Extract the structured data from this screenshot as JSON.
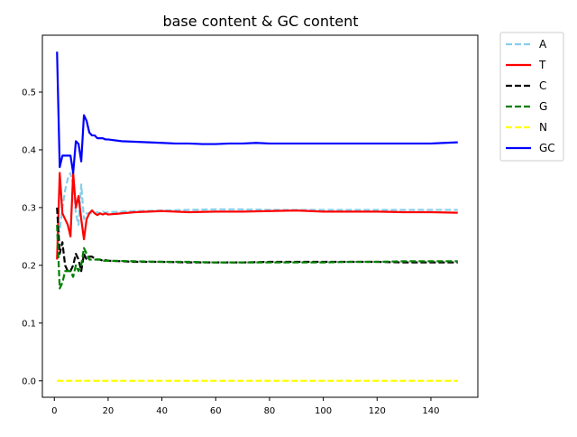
{
  "chart_data": {
    "type": "line",
    "title": "base content & GC content",
    "xlabel": "",
    "ylabel": "",
    "xlim": [
      -4.45,
      157.45
    ],
    "ylim": [
      -0.0285,
      0.5985
    ],
    "xticks": [
      0,
      20,
      40,
      60,
      80,
      100,
      120,
      140
    ],
    "yticks": [
      0.0,
      0.1,
      0.2,
      0.3,
      0.4,
      0.5
    ],
    "xtick_labels": [
      "0",
      "20",
      "40",
      "60",
      "80",
      "100",
      "120",
      "140"
    ],
    "ytick_labels": [
      "0.0",
      "0.1",
      "0.2",
      "0.3",
      "0.4",
      "0.5"
    ],
    "grid": false,
    "legend_position": "outside-top-right",
    "series": [
      {
        "name": "A",
        "color": "#87CEEB",
        "dash": "dashed",
        "points": [
          [
            1,
            0.25
          ],
          [
            2,
            0.26
          ],
          [
            3,
            0.3
          ],
          [
            4,
            0.33
          ],
          [
            5,
            0.35
          ],
          [
            6,
            0.36
          ],
          [
            7,
            0.34
          ],
          [
            8,
            0.29
          ],
          [
            9,
            0.27
          ],
          [
            10,
            0.34
          ],
          [
            11,
            0.28
          ],
          [
            12,
            0.29
          ],
          [
            13,
            0.29
          ],
          [
            14,
            0.29
          ],
          [
            15,
            0.29
          ],
          [
            16,
            0.292
          ],
          [
            17,
            0.29
          ],
          [
            18,
            0.293
          ],
          [
            19,
            0.291
          ],
          [
            20,
            0.292
          ],
          [
            30,
            0.294
          ],
          [
            40,
            0.295
          ],
          [
            50,
            0.296
          ],
          [
            60,
            0.297
          ],
          [
            70,
            0.297
          ],
          [
            80,
            0.296
          ],
          [
            90,
            0.296
          ],
          [
            100,
            0.296
          ],
          [
            110,
            0.296
          ],
          [
            120,
            0.296
          ],
          [
            130,
            0.296
          ],
          [
            140,
            0.296
          ],
          [
            150,
            0.296
          ]
        ]
      },
      {
        "name": "T",
        "color": "#FF0000",
        "dash": "solid",
        "points": [
          [
            1,
            0.21
          ],
          [
            2,
            0.36
          ],
          [
            3,
            0.29
          ],
          [
            4,
            0.28
          ],
          [
            5,
            0.27
          ],
          [
            6,
            0.25
          ],
          [
            7,
            0.36
          ],
          [
            8,
            0.3
          ],
          [
            9,
            0.32
          ],
          [
            10,
            0.28
          ],
          [
            11,
            0.245
          ],
          [
            12,
            0.28
          ],
          [
            13,
            0.29
          ],
          [
            14,
            0.295
          ],
          [
            15,
            0.29
          ],
          [
            16,
            0.287
          ],
          [
            17,
            0.29
          ],
          [
            18,
            0.288
          ],
          [
            19,
            0.29
          ],
          [
            20,
            0.288
          ],
          [
            30,
            0.292
          ],
          [
            40,
            0.294
          ],
          [
            50,
            0.292
          ],
          [
            60,
            0.293
          ],
          [
            70,
            0.293
          ],
          [
            80,
            0.294
          ],
          [
            90,
            0.295
          ],
          [
            100,
            0.293
          ],
          [
            110,
            0.293
          ],
          [
            120,
            0.293
          ],
          [
            130,
            0.292
          ],
          [
            140,
            0.292
          ],
          [
            150,
            0.291
          ]
        ]
      },
      {
        "name": "C",
        "color": "#000000",
        "dash": "dashed",
        "points": [
          [
            1,
            0.3
          ],
          [
            2,
            0.22
          ],
          [
            3,
            0.24
          ],
          [
            4,
            0.2
          ],
          [
            5,
            0.19
          ],
          [
            6,
            0.19
          ],
          [
            7,
            0.2
          ],
          [
            8,
            0.22
          ],
          [
            9,
            0.21
          ],
          [
            10,
            0.19
          ],
          [
            11,
            0.22
          ],
          [
            12,
            0.21
          ],
          [
            13,
            0.215
          ],
          [
            14,
            0.215
          ],
          [
            15,
            0.212
          ],
          [
            16,
            0.21
          ],
          [
            17,
            0.21
          ],
          [
            18,
            0.208
          ],
          [
            19,
            0.209
          ],
          [
            20,
            0.208
          ],
          [
            30,
            0.206
          ],
          [
            40,
            0.206
          ],
          [
            50,
            0.205
          ],
          [
            60,
            0.205
          ],
          [
            70,
            0.205
          ],
          [
            80,
            0.206
          ],
          [
            90,
            0.206
          ],
          [
            100,
            0.206
          ],
          [
            110,
            0.206
          ],
          [
            120,
            0.206
          ],
          [
            130,
            0.205
          ],
          [
            140,
            0.205
          ],
          [
            150,
            0.205
          ]
        ]
      },
      {
        "name": "G",
        "color": "#008000",
        "dash": "dashed",
        "points": [
          [
            1,
            0.27
          ],
          [
            2,
            0.16
          ],
          [
            3,
            0.17
          ],
          [
            4,
            0.19
          ],
          [
            5,
            0.19
          ],
          [
            6,
            0.19
          ],
          [
            7,
            0.18
          ],
          [
            8,
            0.2
          ],
          [
            9,
            0.19
          ],
          [
            10,
            0.2
          ],
          [
            11,
            0.23
          ],
          [
            12,
            0.22
          ],
          [
            13,
            0.21
          ],
          [
            14,
            0.21
          ],
          [
            15,
            0.21
          ],
          [
            16,
            0.21
          ],
          [
            17,
            0.21
          ],
          [
            18,
            0.208
          ],
          [
            19,
            0.208
          ],
          [
            20,
            0.208
          ],
          [
            30,
            0.207
          ],
          [
            40,
            0.206
          ],
          [
            50,
            0.206
          ],
          [
            60,
            0.205
          ],
          [
            70,
            0.205
          ],
          [
            80,
            0.205
          ],
          [
            90,
            0.205
          ],
          [
            100,
            0.205
          ],
          [
            110,
            0.206
          ],
          [
            120,
            0.206
          ],
          [
            130,
            0.207
          ],
          [
            140,
            0.207
          ],
          [
            150,
            0.207
          ]
        ]
      },
      {
        "name": "N",
        "color": "#FFFF00",
        "dash": "dashed",
        "points": [
          [
            1,
            0.0
          ],
          [
            150,
            0.0
          ]
        ]
      },
      {
        "name": "GC",
        "color": "#0000FF",
        "dash": "solid",
        "points": [
          [
            1,
            0.57
          ],
          [
            2,
            0.37
          ],
          [
            3,
            0.39
          ],
          [
            4,
            0.39
          ],
          [
            5,
            0.39
          ],
          [
            6,
            0.39
          ],
          [
            7,
            0.36
          ],
          [
            8,
            0.415
          ],
          [
            9,
            0.41
          ],
          [
            10,
            0.38
          ],
          [
            11,
            0.46
          ],
          [
            12,
            0.45
          ],
          [
            13,
            0.43
          ],
          [
            14,
            0.425
          ],
          [
            15,
            0.425
          ],
          [
            16,
            0.42
          ],
          [
            17,
            0.42
          ],
          [
            18,
            0.42
          ],
          [
            19,
            0.418
          ],
          [
            20,
            0.418
          ],
          [
            25,
            0.415
          ],
          [
            30,
            0.414
          ],
          [
            35,
            0.413
          ],
          [
            40,
            0.412
          ],
          [
            45,
            0.411
          ],
          [
            50,
            0.411
          ],
          [
            55,
            0.41
          ],
          [
            60,
            0.41
          ],
          [
            65,
            0.411
          ],
          [
            70,
            0.411
          ],
          [
            75,
            0.412
          ],
          [
            80,
            0.411
          ],
          [
            85,
            0.411
          ],
          [
            90,
            0.411
          ],
          [
            95,
            0.411
          ],
          [
            100,
            0.411
          ],
          [
            105,
            0.411
          ],
          [
            110,
            0.411
          ],
          [
            115,
            0.411
          ],
          [
            120,
            0.411
          ],
          [
            125,
            0.411
          ],
          [
            130,
            0.411
          ],
          [
            135,
            0.411
          ],
          [
            140,
            0.411
          ],
          [
            145,
            0.412
          ],
          [
            150,
            0.413
          ]
        ]
      }
    ]
  }
}
